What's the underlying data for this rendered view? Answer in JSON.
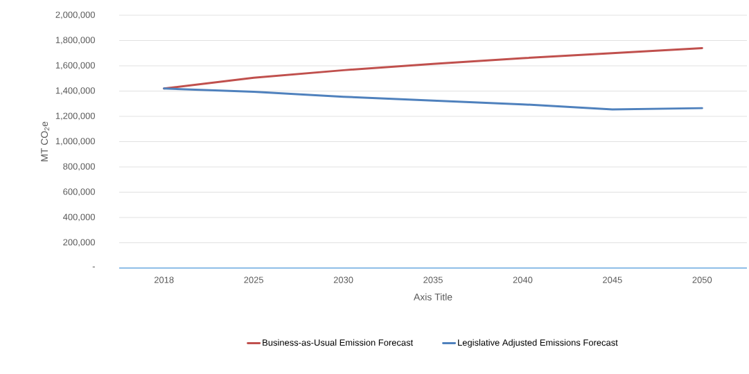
{
  "chart_data": {
    "type": "line",
    "xlabel": "Axis Title",
    "ylabel": "MT CO$_{2}$e",
    "categories": [
      "2018",
      "2025",
      "2030",
      "2035",
      "2040",
      "2045",
      "2050"
    ],
    "series": [
      {
        "name": "Business-as-Usual Emission Forecast",
        "color": "#c0504d",
        "values": [
          1420000,
          1505000,
          1565000,
          1615000,
          1660000,
          1700000,
          1740000
        ]
      },
      {
        "name": "Legislative Adjusted Emissions Forecast",
        "color": "#4f81bd",
        "values": [
          1420000,
          1395000,
          1355000,
          1325000,
          1295000,
          1255000,
          1265000
        ]
      }
    ],
    "ylim": [
      0,
      2000000
    ],
    "yticks": [
      {
        "value": 0,
        "label": "-"
      },
      {
        "value": 200000,
        "label": "200,000"
      },
      {
        "value": 400000,
        "label": "400,000"
      },
      {
        "value": 600000,
        "label": "600,000"
      },
      {
        "value": 800000,
        "label": "800,000"
      },
      {
        "value": 1000000,
        "label": "1,000,000"
      },
      {
        "value": 1200000,
        "label": "1,200,000"
      },
      {
        "value": 1400000,
        "label": "1,400,000"
      },
      {
        "value": 1600000,
        "label": "1,600,000"
      },
      {
        "value": 1800000,
        "label": "1,800,000"
      },
      {
        "value": 2000000,
        "label": "2,000,000"
      }
    ],
    "grid": "y",
    "legend": "bottom",
    "marker": "none",
    "line_style": "solid"
  }
}
